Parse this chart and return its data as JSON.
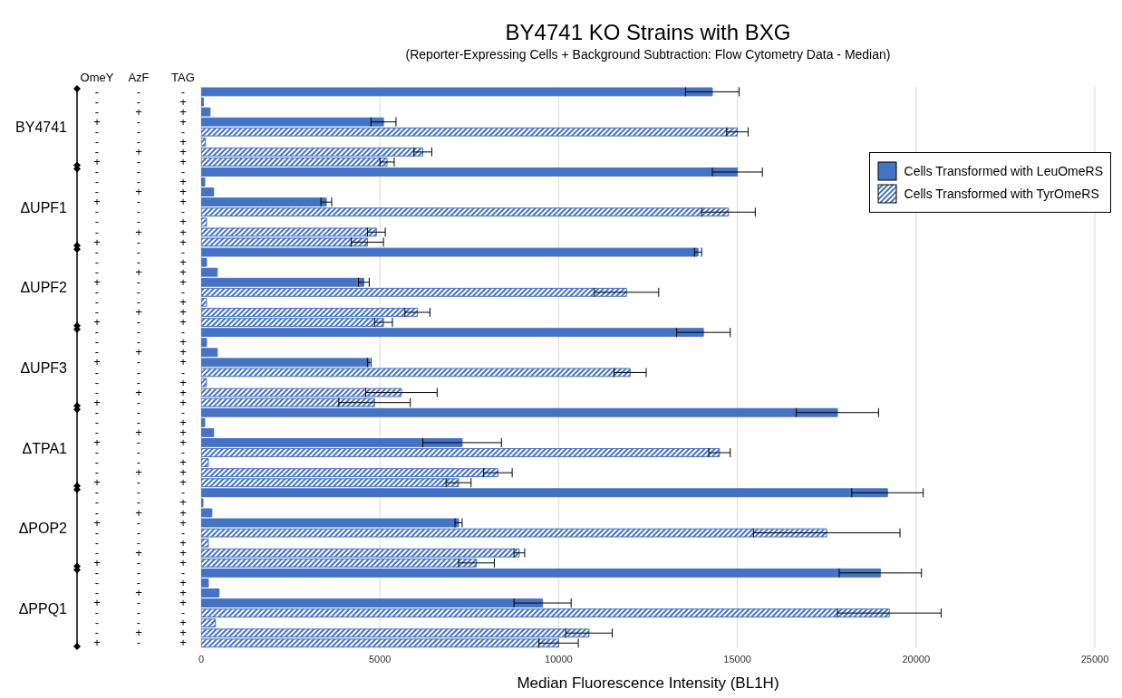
{
  "chart_data": {
    "type": "bar",
    "orientation": "horizontal",
    "title": "BY4741 KO Strains with BXG",
    "subtitle": "(Reporter-Expressing Cells + Background Subtraction: Flow Cytometry Data - Median)",
    "xlabel": "Median Fluorescence Intensity (BL1H)",
    "categories": [
      "- - -",
      "- - +",
      "- + +",
      "+ - +",
      "- - -",
      "- - +",
      "- + +",
      "+ - +",
      "- - -",
      "- - +",
      "- + +",
      "+ - +",
      "- - -",
      "- - +",
      "- + +",
      "+ - +",
      "- - -",
      "- - +",
      "- + +",
      "+ - +",
      "- - -",
      "- - +",
      "- + +",
      "+ - +",
      "- - -",
      "- - +",
      "- + +",
      "+ - +",
      "- - -",
      "- - +",
      "- + +",
      "+ - +",
      "- - -",
      "- - +",
      "- + +",
      "+ - +",
      "- - -",
      "- - +",
      "- + +",
      "+ - +",
      "- - -",
      "- - +",
      "- + +",
      "+ - +",
      "- - -",
      "- - +",
      "- + +",
      "+ - +",
      "- - -",
      "- - +",
      "- + +",
      "+ - +",
      "- - -",
      "- - +",
      "- + +",
      "+ - +"
    ],
    "annotations": [
      "OmeY",
      "AzF",
      "TAG",
      "BY4741",
      "ΔUPF1",
      "ΔUPF2",
      "ΔUPF3",
      "ΔTPA1",
      "ΔPOP2",
      "ΔPPQ1"
    ],
    "series": [
      {
        "name": "Cells Transformed with LeuOmeRS",
        "color": "#4472c4",
        "values": [
          14300,
          60,
          250,
          5100,
          null,
          null,
          null,
          null,
          15000,
          100,
          350,
          3500,
          null,
          null,
          null,
          null,
          13900,
          150,
          450,
          4550,
          null,
          null,
          null,
          null,
          14050,
          150,
          450,
          4700,
          null,
          null,
          null,
          null,
          17800,
          100,
          350,
          7300,
          null,
          null,
          null,
          null,
          19200,
          50,
          300,
          7200,
          null,
          null,
          null,
          null,
          19000,
          200,
          500,
          9550,
          null,
          null,
          null,
          null
        ],
        "errors": [
          750,
          null,
          null,
          350,
          null,
          null,
          null,
          null,
          700,
          null,
          null,
          150,
          null,
          null,
          null,
          null,
          100,
          null,
          null,
          150,
          null,
          null,
          null,
          null,
          750,
          null,
          null,
          50,
          null,
          null,
          null,
          null,
          1150,
          null,
          null,
          1100,
          null,
          null,
          null,
          null,
          1000,
          null,
          null,
          100,
          null,
          null,
          null,
          null,
          1150,
          null,
          null,
          800,
          null,
          null,
          null,
          null
        ]
      },
      {
        "name": "Cells Transformed with TyrOmeRS",
        "color": "#4472c4",
        "values": [
          null,
          null,
          null,
          null,
          15000,
          120,
          6200,
          5200,
          null,
          null,
          null,
          null,
          14750,
          150,
          4900,
          4650,
          null,
          null,
          null,
          null,
          11900,
          150,
          6050,
          5100,
          null,
          null,
          null,
          null,
          12000,
          150,
          5600,
          4850,
          null,
          null,
          null,
          null,
          14500,
          200,
          8300,
          7200,
          null,
          null,
          null,
          null,
          17500,
          200,
          8900,
          7700,
          null,
          null,
          null,
          null,
          19250,
          400,
          10850,
          10000
        ],
        "errors": [
          null,
          null,
          null,
          null,
          300,
          null,
          250,
          200,
          null,
          null,
          null,
          null,
          750,
          null,
          250,
          450,
          null,
          null,
          null,
          null,
          900,
          null,
          350,
          250,
          null,
          null,
          null,
          null,
          450,
          null,
          1000,
          1000,
          null,
          null,
          null,
          null,
          300,
          null,
          400,
          350,
          null,
          null,
          null,
          null,
          2050,
          null,
          150,
          500,
          null,
          null,
          null,
          null,
          1450,
          null,
          650,
          550
        ]
      }
    ],
    "xlim": [
      0,
      25000
    ],
    "xticks": [
      0,
      5000,
      10000,
      15000,
      20000,
      25000
    ],
    "grid": "x",
    "legend": "top right"
  }
}
